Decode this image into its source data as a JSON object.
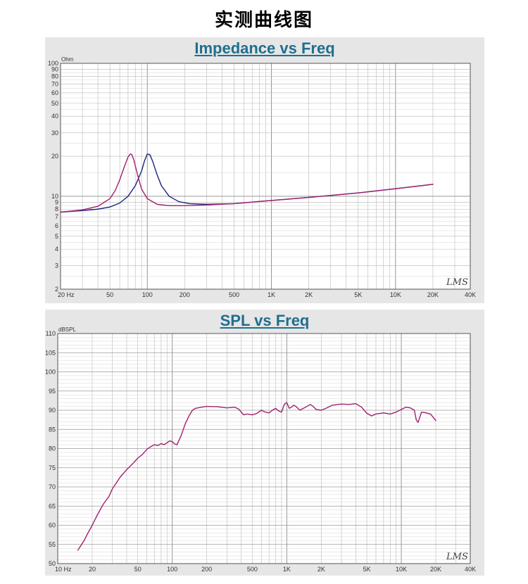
{
  "page": {
    "title": "实测曲线图"
  },
  "chart_data": [
    {
      "type": "line",
      "title": "Impedance vs Freq",
      "ylabel": "Ohm",
      "xlabel": "",
      "x_scale": "log",
      "y_scale": "log",
      "xlim": [
        20,
        40000
      ],
      "ylim": [
        2,
        100
      ],
      "grid": true,
      "x_ticks": [
        {
          "value": 20,
          "label": "20 Hz"
        },
        {
          "value": 50,
          "label": "50"
        },
        {
          "value": 100,
          "label": "100"
        },
        {
          "value": 200,
          "label": "200"
        },
        {
          "value": 500,
          "label": "500"
        },
        {
          "value": 1000,
          "label": "1K"
        },
        {
          "value": 2000,
          "label": "2K"
        },
        {
          "value": 5000,
          "label": "5K"
        },
        {
          "value": 10000,
          "label": "10K"
        },
        {
          "value": 20000,
          "label": "20K"
        },
        {
          "value": 40000,
          "label": "40K"
        }
      ],
      "y_ticks": [
        {
          "value": 2,
          "label": "2"
        },
        {
          "value": 3,
          "label": "3"
        },
        {
          "value": 4,
          "label": "4"
        },
        {
          "value": 5,
          "label": "5"
        },
        {
          "value": 6,
          "label": "6"
        },
        {
          "value": 7,
          "label": "7"
        },
        {
          "value": 8,
          "label": "8"
        },
        {
          "value": 9,
          "label": "9"
        },
        {
          "value": 10,
          "label": "10"
        },
        {
          "value": 20,
          "label": "20"
        },
        {
          "value": 30,
          "label": "30"
        },
        {
          "value": 40,
          "label": "40"
        },
        {
          "value": 50,
          "label": "50"
        },
        {
          "value": 60,
          "label": "60"
        },
        {
          "value": 70,
          "label": "70"
        },
        {
          "value": 80,
          "label": "80"
        },
        {
          "value": 90,
          "label": "90"
        },
        {
          "value": 100,
          "label": "100"
        }
      ],
      "watermark": "LMS",
      "series": [
        {
          "color": "#1a237e",
          "x": [
            20,
            30,
            40,
            50,
            60,
            70,
            80,
            90,
            95,
            100,
            105,
            110,
            120,
            130,
            150,
            180,
            220,
            300,
            500,
            1000,
            2000,
            5000,
            10000,
            20000
          ],
          "y": [
            7.6,
            7.8,
            8.0,
            8.3,
            8.9,
            10.0,
            12.0,
            15.5,
            18.5,
            20.8,
            20.5,
            18.5,
            14.5,
            12.0,
            10.0,
            9.1,
            8.8,
            8.7,
            8.8,
            9.3,
            9.8,
            10.6,
            11.4,
            12.3
          ]
        },
        {
          "color": "#a0206e",
          "x": [
            20,
            30,
            40,
            50,
            55,
            60,
            65,
            70,
            73,
            75,
            78,
            80,
            85,
            90,
            100,
            120,
            150,
            200,
            300,
            500,
            1000,
            2000,
            5000,
            10000,
            20000
          ],
          "y": [
            7.6,
            7.9,
            8.4,
            9.6,
            11.0,
            13.3,
            16.5,
            19.8,
            20.8,
            20.6,
            18.7,
            17.0,
            13.6,
            11.3,
            9.6,
            8.7,
            8.5,
            8.5,
            8.6,
            8.8,
            9.3,
            9.8,
            10.6,
            11.4,
            12.3
          ]
        }
      ]
    },
    {
      "type": "line",
      "title": "SPL vs Freq",
      "ylabel": "dBSPL",
      "xlabel": "",
      "x_scale": "log",
      "xlim": [
        10,
        40000
      ],
      "ylim": [
        50,
        110
      ],
      "grid": true,
      "x_ticks": [
        {
          "value": 10,
          "label": "10 Hz"
        },
        {
          "value": 20,
          "label": "20"
        },
        {
          "value": 50,
          "label": "50"
        },
        {
          "value": 100,
          "label": "100"
        },
        {
          "value": 200,
          "label": "200"
        },
        {
          "value": 500,
          "label": "500"
        },
        {
          "value": 1000,
          "label": "1K"
        },
        {
          "value": 2000,
          "label": "2K"
        },
        {
          "value": 5000,
          "label": "5K"
        },
        {
          "value": 10000,
          "label": "10K"
        },
        {
          "value": 20000,
          "label": "20K"
        },
        {
          "value": 40000,
          "label": "40K"
        }
      ],
      "y_ticks": [
        {
          "value": 50,
          "label": "50"
        },
        {
          "value": 55,
          "label": "55"
        },
        {
          "value": 60,
          "label": "60"
        },
        {
          "value": 65,
          "label": "65"
        },
        {
          "value": 70,
          "label": "70"
        },
        {
          "value": 75,
          "label": "75"
        },
        {
          "value": 80,
          "label": "80"
        },
        {
          "value": 85,
          "label": "85"
        },
        {
          "value": 90,
          "label": "90"
        },
        {
          "value": 95,
          "label": "95"
        },
        {
          "value": 100,
          "label": "100"
        },
        {
          "value": 105,
          "label": "105"
        },
        {
          "value": 110,
          "label": "110"
        }
      ],
      "watermark": "LMS",
      "series": [
        {
          "color": "#a0206e",
          "x": [
            15,
            17,
            18,
            20,
            22,
            25,
            28,
            30,
            35,
            40,
            45,
            50,
            55,
            60,
            65,
            70,
            75,
            80,
            85,
            90,
            95,
            100,
            105,
            110,
            120,
            130,
            140,
            150,
            160,
            180,
            200,
            250,
            300,
            350,
            380,
            400,
            420,
            450,
            500,
            550,
            600,
            650,
            700,
            750,
            800,
            850,
            900,
            950,
            1000,
            1050,
            1100,
            1150,
            1200,
            1300,
            1400,
            1500,
            1600,
            1700,
            1800,
            2000,
            2200,
            2500,
            2800,
            3000,
            3500,
            4000,
            4500,
            4800,
            5000,
            5500,
            6000,
            7000,
            8000,
            9000,
            10000,
            11000,
            12000,
            12500,
            13000,
            13500,
            14000,
            15000,
            16000,
            18000,
            20000
          ],
          "y": [
            53.5,
            56.0,
            57.5,
            60.0,
            62.5,
            65.5,
            67.5,
            69.5,
            72.5,
            74.5,
            76.0,
            77.5,
            78.5,
            79.8,
            80.5,
            81.0,
            80.8,
            81.3,
            81.0,
            81.5,
            82.0,
            81.8,
            81.2,
            81.0,
            83.5,
            86.5,
            88.5,
            90.0,
            90.5,
            90.8,
            91.0,
            90.9,
            90.6,
            90.8,
            90.3,
            89.5,
            88.8,
            89.0,
            88.8,
            89.2,
            90.0,
            89.5,
            89.3,
            90.0,
            90.5,
            89.8,
            89.5,
            91.5,
            92.0,
            90.5,
            90.8,
            91.3,
            91.0,
            90.0,
            90.5,
            91.0,
            91.5,
            91.0,
            90.2,
            90.0,
            90.5,
            91.3,
            91.5,
            91.6,
            91.5,
            91.7,
            90.8,
            89.8,
            89.2,
            88.5,
            89.0,
            89.3,
            89.0,
            89.5,
            90.2,
            90.8,
            90.6,
            90.3,
            90.0,
            87.5,
            86.8,
            89.5,
            89.4,
            89.0,
            87.3
          ]
        }
      ]
    }
  ]
}
